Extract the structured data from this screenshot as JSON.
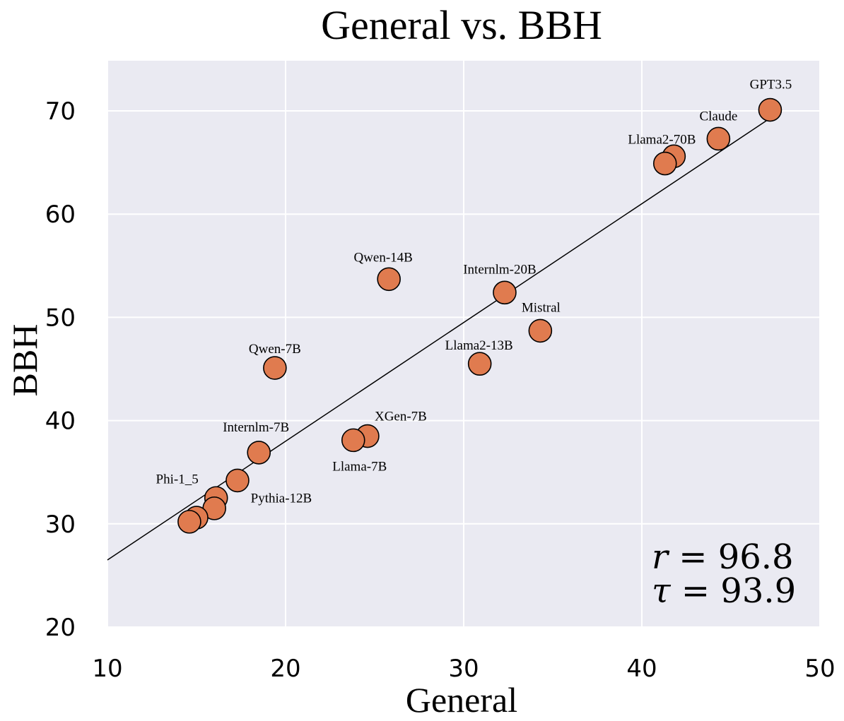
{
  "chart_data": {
    "type": "scatter",
    "title": "General vs. BBH",
    "xlabel": "General",
    "ylabel": "BBH",
    "xlim": [
      10,
      50
    ],
    "ylim": [
      20,
      75
    ],
    "xticks": [
      10,
      20,
      30,
      40,
      50
    ],
    "yticks": [
      20,
      30,
      40,
      50,
      60,
      70
    ],
    "grid": true,
    "background_color": "#eaeaf2",
    "point_color": "#e07b4f",
    "fit_line": {
      "x": [
        10,
        47.3
      ],
      "y": [
        26.5,
        69.4
      ]
    },
    "stats": {
      "r_symbol": "r",
      "r_value": "96.8",
      "tau_symbol": "τ",
      "tau_value": "93.9"
    },
    "points": [
      {
        "label": "GPT3.5",
        "x": 47.2,
        "y": 70.1
      },
      {
        "label": "Claude",
        "x": 44.3,
        "y": 67.3
      },
      {
        "label": "Llama2-70B",
        "x": 41.8,
        "y": 65.6
      },
      {
        "label": "",
        "x": 41.3,
        "y": 64.9
      },
      {
        "label": "Qwen-14B",
        "x": 25.8,
        "y": 53.7
      },
      {
        "label": "Internlm-20B",
        "x": 32.3,
        "y": 52.4
      },
      {
        "label": "Mistral",
        "x": 34.3,
        "y": 48.7
      },
      {
        "label": "Llama2-13B",
        "x": 30.9,
        "y": 45.5
      },
      {
        "label": "Qwen-7B",
        "x": 19.4,
        "y": 45.1
      },
      {
        "label": "XGen-7B",
        "x": 24.6,
        "y": 38.5
      },
      {
        "label": "Llama-7B",
        "x": 23.8,
        "y": 38.1
      },
      {
        "label": "Internlm-7B",
        "x": 18.5,
        "y": 36.9
      },
      {
        "label": "Pythia-12B",
        "x": 17.3,
        "y": 34.2
      },
      {
        "label": "Phi-1_5",
        "x": 16.1,
        "y": 32.5
      },
      {
        "label": "",
        "x": 16.0,
        "y": 31.5
      },
      {
        "label": "",
        "x": 15.0,
        "y": 30.6
      },
      {
        "label": "",
        "x": 14.6,
        "y": 30.2
      }
    ]
  }
}
